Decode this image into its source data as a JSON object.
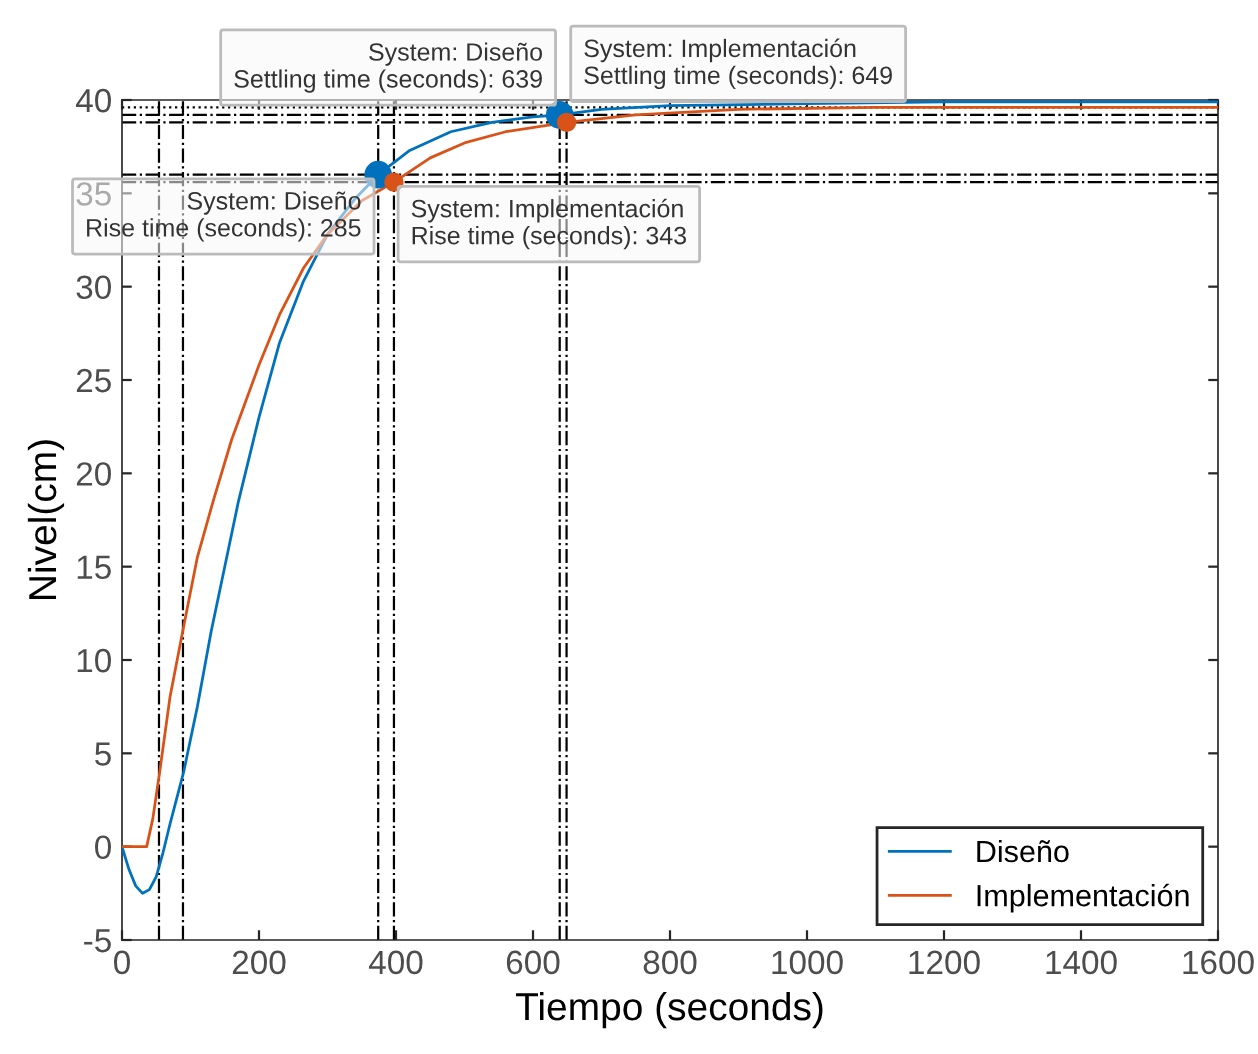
{
  "chart_data": {
    "type": "line",
    "xlabel": "Tiempo (seconds)",
    "ylabel": "Nivel(cm)",
    "xlim": [
      0,
      1600
    ],
    "xticks": [
      0,
      200,
      400,
      600,
      800,
      1000,
      1200,
      1400,
      1600
    ],
    "ylim": [
      -5,
      40
    ],
    "yticks": [
      -5,
      0,
      5,
      10,
      15,
      20,
      25,
      30,
      35,
      40
    ],
    "grid": false,
    "legend": "bottom right",
    "marker": "none",
    "line_style": "solid",
    "series": [
      {
        "name": "Diseño",
        "color": "#0072bd",
        "x": [
          0,
          10,
          20,
          30,
          40,
          50,
          60,
          70,
          80,
          90,
          110,
          130,
          150,
          170,
          200,
          230,
          265,
          300,
          340,
          374,
          420,
          480,
          540,
          600,
          639,
          700,
          800,
          1000,
          1200,
          1600
        ],
        "values": [
          0,
          -1.2,
          -2.1,
          -2.5,
          -2.3,
          -1.6,
          -0.3,
          1.2,
          2.6,
          4,
          7.5,
          11.5,
          15,
          18.5,
          23,
          27,
          30.3,
          32.8,
          34.7,
          36,
          37.3,
          38.3,
          38.8,
          39.1,
          39.2,
          39.5,
          39.7,
          39.8,
          39.9,
          39.9
        ]
      },
      {
        "name": "Implementación",
        "color": "#d95319",
        "x": [
          0,
          36,
          45,
          55,
          70,
          90,
          110,
          133,
          160,
          200,
          230,
          265,
          300,
          350,
          397,
          450,
          500,
          560,
          649,
          750,
          900,
          1100,
          1600
        ],
        "values": [
          0,
          0,
          1.5,
          4,
          8,
          11.8,
          15.5,
          18.5,
          21.8,
          25.8,
          28.5,
          31,
          32.8,
          34.6,
          35.6,
          36.9,
          37.7,
          38.3,
          38.8,
          39.2,
          39.5,
          39.6,
          39.6
        ]
      },
      {
        "type": "scatter",
        "color": "#0072bd",
        "marker": "circle",
        "x": [
          374,
          639
        ],
        "values": [
          36,
          39.2
        ]
      },
      {
        "type": "scatter",
        "color": "#d95319",
        "marker": "circle",
        "x": [
          397,
          649
        ],
        "values": [
          35.6,
          38.8
        ]
      }
    ],
    "ref_lines": [
      {
        "axis": "x",
        "value": 89,
        "color": "#000000",
        "line_style": "dashdot"
      },
      {
        "axis": "x",
        "value": 54,
        "color": "#000000",
        "line_style": "dashdot"
      },
      {
        "axis": "x",
        "value": 374,
        "color": "#000000",
        "line_style": "dashdot"
      },
      {
        "axis": "x",
        "value": 397,
        "color": "#000000",
        "line_style": "dashdot"
      },
      {
        "axis": "x",
        "value": 639,
        "color": "#000000",
        "line_style": "dashdot"
      },
      {
        "axis": "x",
        "value": 649,
        "color": "#000000",
        "line_style": "dashdot"
      },
      {
        "axis": "y",
        "value": 36,
        "color": "#000000",
        "line_style": "dashdot"
      },
      {
        "axis": "y",
        "value": 35.6,
        "color": "#000000",
        "line_style": "dashdot"
      },
      {
        "axis": "y",
        "value": 39.2,
        "color": "#000000",
        "line_style": "dashdot"
      },
      {
        "axis": "y",
        "value": 38.8,
        "color": "#000000",
        "line_style": "dashdot"
      },
      {
        "axis": "y",
        "value": 39.6,
        "color": "#000000",
        "line_style": "dotted"
      }
    ],
    "annotations": [
      {
        "text": "System: Diseño\nSettling time (seconds): 639",
        "x": 639,
        "y": 39.2
      },
      {
        "text": "System: Implementación\nSettling time (seconds): 649",
        "x": 649,
        "y": 38.8
      },
      {
        "text": "System: Diseño\nRise time (seconds): 285",
        "x": 374,
        "y": 36
      },
      {
        "text": "System: Implementación\nRise time (seconds): 343",
        "x": 397,
        "y": 35.6
      }
    ]
  }
}
